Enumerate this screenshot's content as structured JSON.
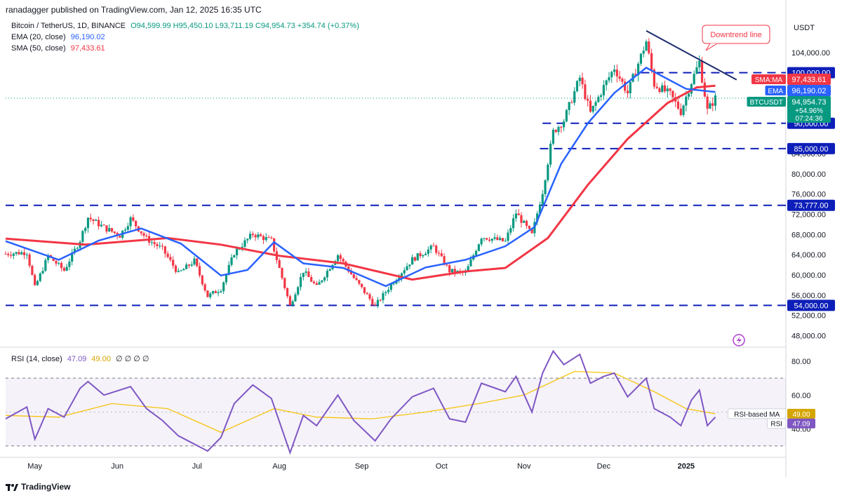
{
  "header": {
    "published": "ranadagger published on TradingView.com, Jan 12, 2025 16:35 UTC",
    "currency": "USDT"
  },
  "legend": {
    "symbol": "Bitcoin / TetherUS, 1D, BINANCE",
    "ohlc": "O94,599.99  H95,450.10  L93,711.19  C94,954.73  +354.74 (+0.37%)",
    "ema_label": "EMA (20, close)",
    "ema_value": "96,190.02",
    "sma_label": "SMA (50, close)",
    "sma_value": "97,433.61",
    "rsi_label": "RSI (14, close)",
    "rsi_value": "47.09",
    "rsi_ma_value": "49.00",
    "rsi_extra": "∅ ∅ ∅ ∅"
  },
  "annotation": "Downtrend line",
  "footer": {
    "brand": "TradingView"
  },
  "colors": {
    "up": "#089981",
    "down": "#f23645",
    "ema": "#2962ff",
    "sma": "#f23645",
    "rsi": "#7e57c2",
    "rsi_ma": "#f7c50d",
    "level": "#0d1fb8",
    "trendline": "#1a2a6c"
  },
  "chart_data": {
    "type": "candlestick",
    "title": "Bitcoin / TetherUS, 1D, BINANCE",
    "x_labels": [
      "May",
      "Jun",
      "Jul",
      "Aug",
      "Sep",
      "Oct",
      "Nov",
      "Dec",
      "2025"
    ],
    "x_range": [
      "2024-04-20",
      "2025-01-12"
    ],
    "price_ticks": [
      "48,000.00",
      "52,000.00",
      "56,000.00",
      "60,000.00",
      "64,000.00",
      "68,000.00",
      "72,000.00",
      "76,000.00",
      "80,000.00",
      "84,000.00",
      "104,000.00"
    ],
    "ylim": [
      46000,
      108000
    ],
    "horizontal_levels": [
      {
        "label": "100,000.00",
        "value": 100000
      },
      {
        "label": "90,000.00",
        "value": 90000
      },
      {
        "label": "85,000.00",
        "value": 85000
      },
      {
        "label": "73,777.00",
        "value": 73777
      },
      {
        "label": "54,000.00",
        "value": 54000
      }
    ],
    "price_tags": [
      {
        "name": "SMA:MA",
        "value": "97,433.61"
      },
      {
        "name": "EMA",
        "value": "96,190.02"
      },
      {
        "name": "BTCUSDT",
        "value": "94,954.73",
        "change": "+54.96%",
        "countdown": "07:24:36"
      }
    ],
    "downtrend_line": {
      "from": [
        "2024-12-17",
        108300
      ],
      "to": [
        "2025-01-20",
        98600
      ]
    },
    "price_path": [
      [
        "2024-04-20",
        64200
      ],
      [
        "2024-04-28",
        64500
      ],
      [
        "2024-05-01",
        57500
      ],
      [
        "2024-05-06",
        63800
      ],
      [
        "2024-05-12",
        60900
      ],
      [
        "2024-05-18",
        66900
      ],
      [
        "2024-05-21",
        71400
      ],
      [
        "2024-05-27",
        69400
      ],
      [
        "2024-06-02",
        67800
      ],
      [
        "2024-06-06",
        71100
      ],
      [
        "2024-06-12",
        67200
      ],
      [
        "2024-06-18",
        65100
      ],
      [
        "2024-06-24",
        60300
      ],
      [
        "2024-06-30",
        62800
      ],
      [
        "2024-07-05",
        55800
      ],
      [
        "2024-07-10",
        57300
      ],
      [
        "2024-07-15",
        64400
      ],
      [
        "2024-07-22",
        68100
      ],
      [
        "2024-07-29",
        66800
      ],
      [
        "2024-08-05",
        53900
      ],
      [
        "2024-08-10",
        60800
      ],
      [
        "2024-08-15",
        57600
      ],
      [
        "2024-08-23",
        64000
      ],
      [
        "2024-08-29",
        59400
      ],
      [
        "2024-09-06",
        53900
      ],
      [
        "2024-09-12",
        58100
      ],
      [
        "2024-09-20",
        63100
      ],
      [
        "2024-09-28",
        65600
      ],
      [
        "2024-10-04",
        60800
      ],
      [
        "2024-10-10",
        60300
      ],
      [
        "2024-10-16",
        67600
      ],
      [
        "2024-10-25",
        66600
      ],
      [
        "2024-10-29",
        72300
      ],
      [
        "2024-11-04",
        67900
      ],
      [
        "2024-11-08",
        76500
      ],
      [
        "2024-11-12",
        88300
      ],
      [
        "2024-11-16",
        90600
      ],
      [
        "2024-11-22",
        99000
      ],
      [
        "2024-11-26",
        92000
      ],
      [
        "2024-12-01",
        97200
      ],
      [
        "2024-12-05",
        101000
      ],
      [
        "2024-12-10",
        96000
      ],
      [
        "2024-12-17",
        106200
      ],
      [
        "2024-12-20",
        97700
      ],
      [
        "2024-12-26",
        95700
      ],
      [
        "2024-12-30",
        92300
      ],
      [
        "2025-01-03",
        98200
      ],
      [
        "2025-01-06",
        102100
      ],
      [
        "2025-01-09",
        92500
      ],
      [
        "2025-01-12",
        94954
      ]
    ],
    "ema20_path": [
      [
        "2024-04-20",
        66700
      ],
      [
        "2024-05-10",
        63000
      ],
      [
        "2024-05-25",
        66800
      ],
      [
        "2024-06-10",
        69200
      ],
      [
        "2024-06-25",
        66200
      ],
      [
        "2024-07-10",
        59900
      ],
      [
        "2024-07-20",
        61000
      ],
      [
        "2024-07-30",
        66500
      ],
      [
        "2024-08-10",
        62300
      ],
      [
        "2024-08-25",
        61400
      ],
      [
        "2024-09-10",
        57800
      ],
      [
        "2024-09-25",
        61500
      ],
      [
        "2024-10-10",
        63000
      ],
      [
        "2024-10-25",
        65700
      ],
      [
        "2024-11-05",
        69500
      ],
      [
        "2024-11-15",
        82000
      ],
      [
        "2024-11-25",
        90000
      ],
      [
        "2024-12-05",
        96000
      ],
      [
        "2024-12-17",
        101000
      ],
      [
        "2025-01-01",
        96800
      ],
      [
        "2025-01-12",
        96190
      ]
    ],
    "sma50_path": [
      [
        "2024-04-20",
        67200
      ],
      [
        "2024-05-20",
        66000
      ],
      [
        "2024-06-20",
        67300
      ],
      [
        "2024-07-10",
        66000
      ],
      [
        "2024-08-01",
        63800
      ],
      [
        "2024-08-25",
        62300
      ],
      [
        "2024-09-20",
        59100
      ],
      [
        "2024-10-10",
        60700
      ],
      [
        "2024-10-25",
        61400
      ],
      [
        "2024-11-10",
        67300
      ],
      [
        "2024-11-25",
        77800
      ],
      [
        "2024-12-10",
        86900
      ],
      [
        "2024-12-25",
        94000
      ],
      [
        "2025-01-05",
        97100
      ],
      [
        "2025-01-12",
        97433
      ]
    ],
    "rsi": {
      "ticks": [
        "40.00",
        "60.00",
        "80.00"
      ],
      "ylim": [
        27,
        88
      ],
      "bands": [
        30,
        70
      ],
      "tags": [
        {
          "name": "RSI-based MA",
          "value": "49.00"
        },
        {
          "name": "RSI",
          "value": "47.09"
        }
      ],
      "rsi_path": [
        [
          "2024-04-20",
          46
        ],
        [
          "2024-04-28",
          53
        ],
        [
          "2024-05-01",
          34
        ],
        [
          "2024-05-06",
          52
        ],
        [
          "2024-05-12",
          47
        ],
        [
          "2024-05-18",
          64
        ],
        [
          "2024-05-21",
          68
        ],
        [
          "2024-05-27",
          60
        ],
        [
          "2024-06-06",
          65
        ],
        [
          "2024-06-12",
          52
        ],
        [
          "2024-06-18",
          45
        ],
        [
          "2024-06-24",
          36
        ],
        [
          "2024-07-05",
          27
        ],
        [
          "2024-07-10",
          35
        ],
        [
          "2024-07-15",
          55
        ],
        [
          "2024-07-22",
          66
        ],
        [
          "2024-07-29",
          58
        ],
        [
          "2024-08-05",
          26
        ],
        [
          "2024-08-10",
          48
        ],
        [
          "2024-08-15",
          42
        ],
        [
          "2024-08-23",
          60
        ],
        [
          "2024-08-29",
          45
        ],
        [
          "2024-09-06",
          33
        ],
        [
          "2024-09-12",
          46
        ],
        [
          "2024-09-20",
          59
        ],
        [
          "2024-09-28",
          64
        ],
        [
          "2024-10-04",
          46
        ],
        [
          "2024-10-10",
          44
        ],
        [
          "2024-10-16",
          67
        ],
        [
          "2024-10-25",
          62
        ],
        [
          "2024-10-29",
          71
        ],
        [
          "2024-11-04",
          50
        ],
        [
          "2024-11-08",
          73
        ],
        [
          "2024-11-12",
          86
        ],
        [
          "2024-11-16",
          78
        ],
        [
          "2024-11-22",
          84
        ],
        [
          "2024-11-26",
          67
        ],
        [
          "2024-12-01",
          71
        ],
        [
          "2024-12-05",
          73
        ],
        [
          "2024-12-10",
          59
        ],
        [
          "2024-12-17",
          70
        ],
        [
          "2024-12-20",
          52
        ],
        [
          "2024-12-26",
          47
        ],
        [
          "2024-12-30",
          42
        ],
        [
          "2025-01-03",
          57
        ],
        [
          "2025-01-06",
          63
        ],
        [
          "2025-01-09",
          42
        ],
        [
          "2025-01-12",
          47
        ]
      ],
      "rsi_ma_path": [
        [
          "2024-04-20",
          48
        ],
        [
          "2024-05-10",
          47
        ],
        [
          "2024-05-30",
          55
        ],
        [
          "2024-06-20",
          52
        ],
        [
          "2024-07-10",
          38
        ],
        [
          "2024-07-30",
          52
        ],
        [
          "2024-08-15",
          47
        ],
        [
          "2024-09-05",
          46
        ],
        [
          "2024-09-25",
          50
        ],
        [
          "2024-10-15",
          55
        ],
        [
          "2024-11-01",
          60
        ],
        [
          "2024-11-20",
          74
        ],
        [
          "2024-12-05",
          73
        ],
        [
          "2024-12-20",
          62
        ],
        [
          "2025-01-01",
          52
        ],
        [
          "2025-01-12",
          49
        ]
      ]
    }
  }
}
